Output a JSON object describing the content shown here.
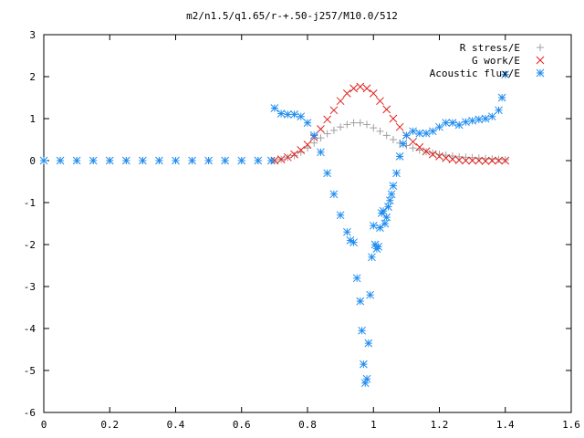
{
  "chart_data": {
    "type": "scatter",
    "title": "m2/n1.5/q1.65/r-+.50-j257/M10.0/512",
    "xlabel": "",
    "ylabel": "",
    "xlim": [
      0,
      1.6
    ],
    "ylim": [
      -6,
      3
    ],
    "x_ticks": [
      "0",
      "0.2",
      "0.4",
      "0.6",
      "0.8",
      "1",
      "1.2",
      "1.4",
      "1.6"
    ],
    "y_ticks": [
      "3",
      "2",
      "1",
      "0",
      "-1",
      "-2",
      "-3",
      "-4",
      "-5",
      "-6"
    ],
    "grid": false,
    "legend_position": "top-right",
    "series": [
      {
        "name": "R stress/E",
        "marker": "plus",
        "color": "#a0a0a0",
        "x": [
          0.0,
          0.05,
          0.1,
          0.15,
          0.2,
          0.25,
          0.3,
          0.35,
          0.4,
          0.45,
          0.5,
          0.55,
          0.6,
          0.65,
          0.7,
          0.72,
          0.74,
          0.76,
          0.78,
          0.8,
          0.82,
          0.84,
          0.86,
          0.88,
          0.9,
          0.92,
          0.94,
          0.96,
          0.98,
          1.0,
          1.02,
          1.04,
          1.06,
          1.08,
          1.1,
          1.12,
          1.14,
          1.16,
          1.18,
          1.2,
          1.22,
          1.24,
          1.26,
          1.28,
          1.3,
          1.32,
          1.34,
          1.36,
          1.38,
          1.4
        ],
        "y": [
          0,
          0,
          0,
          0,
          0,
          0,
          0,
          0,
          0,
          0,
          0,
          0,
          0,
          0,
          0,
          0.03,
          0.07,
          0.12,
          0.2,
          0.3,
          0.42,
          0.54,
          0.64,
          0.72,
          0.8,
          0.86,
          0.9,
          0.9,
          0.86,
          0.78,
          0.7,
          0.6,
          0.5,
          0.42,
          0.36,
          0.3,
          0.25,
          0.21,
          0.18,
          0.15,
          0.13,
          0.11,
          0.09,
          0.08,
          0.07,
          0.06,
          0.05,
          0.04,
          0.03,
          0.02
        ]
      },
      {
        "name": "G work/E",
        "marker": "cross",
        "color": "#e0201c",
        "x": [
          0.7,
          0.72,
          0.74,
          0.76,
          0.78,
          0.8,
          0.82,
          0.84,
          0.86,
          0.88,
          0.9,
          0.92,
          0.94,
          0.96,
          0.98,
          1.0,
          1.02,
          1.04,
          1.06,
          1.08,
          1.1,
          1.12,
          1.14,
          1.16,
          1.18,
          1.2,
          1.22,
          1.24,
          1.26,
          1.28,
          1.3,
          1.32,
          1.34,
          1.36,
          1.38,
          1.4
        ],
        "y": [
          0.0,
          0.03,
          0.08,
          0.15,
          0.25,
          0.38,
          0.55,
          0.75,
          0.98,
          1.2,
          1.42,
          1.6,
          1.72,
          1.76,
          1.72,
          1.6,
          1.42,
          1.22,
          1.0,
          0.8,
          0.6,
          0.45,
          0.32,
          0.22,
          0.15,
          0.1,
          0.06,
          0.03,
          0.01,
          0.0,
          0.0,
          0.0,
          -0.01,
          0.0,
          0.0,
          0.0
        ]
      },
      {
        "name": "Acoustic flux/E",
        "marker": "star",
        "color": "#1e8cf0",
        "x": [
          0.0,
          0.05,
          0.1,
          0.15,
          0.2,
          0.25,
          0.3,
          0.35,
          0.4,
          0.45,
          0.5,
          0.55,
          0.6,
          0.65,
          0.69,
          0.7,
          0.72,
          0.74,
          0.76,
          0.78,
          0.8,
          0.82,
          0.84,
          0.86,
          0.88,
          0.9,
          0.92,
          0.93,
          0.94,
          0.95,
          0.96,
          0.965,
          0.97,
          0.975,
          0.98,
          0.985,
          0.99,
          0.995,
          1.0,
          1.005,
          1.01,
          1.015,
          1.02,
          1.025,
          1.03,
          1.035,
          1.04,
          1.045,
          1.05,
          1.055,
          1.06,
          1.07,
          1.08,
          1.09,
          1.1,
          1.12,
          1.14,
          1.16,
          1.18,
          1.2,
          1.22,
          1.24,
          1.26,
          1.28,
          1.3,
          1.32,
          1.34,
          1.36,
          1.38,
          1.39,
          1.4
        ],
        "y": [
          0,
          0,
          0,
          0,
          0,
          0,
          0,
          0,
          0,
          0,
          0,
          0,
          0,
          0,
          0,
          1.25,
          1.12,
          1.1,
          1.1,
          1.05,
          0.9,
          0.6,
          0.2,
          -0.3,
          -0.8,
          -1.3,
          -1.7,
          -1.9,
          -1.95,
          -2.8,
          -3.35,
          -4.05,
          -4.85,
          -5.3,
          -5.2,
          -4.35,
          -3.2,
          -2.3,
          -1.55,
          -2.0,
          -2.1,
          -2.05,
          -1.6,
          -1.25,
          -1.2,
          -1.5,
          -1.35,
          -1.1,
          -0.95,
          -0.8,
          -0.6,
          -0.3,
          0.1,
          0.4,
          0.6,
          0.7,
          0.65,
          0.65,
          0.7,
          0.8,
          0.9,
          0.9,
          0.85,
          0.92,
          0.95,
          0.98,
          1.0,
          1.05,
          1.2,
          1.5,
          2.05
        ]
      }
    ]
  }
}
